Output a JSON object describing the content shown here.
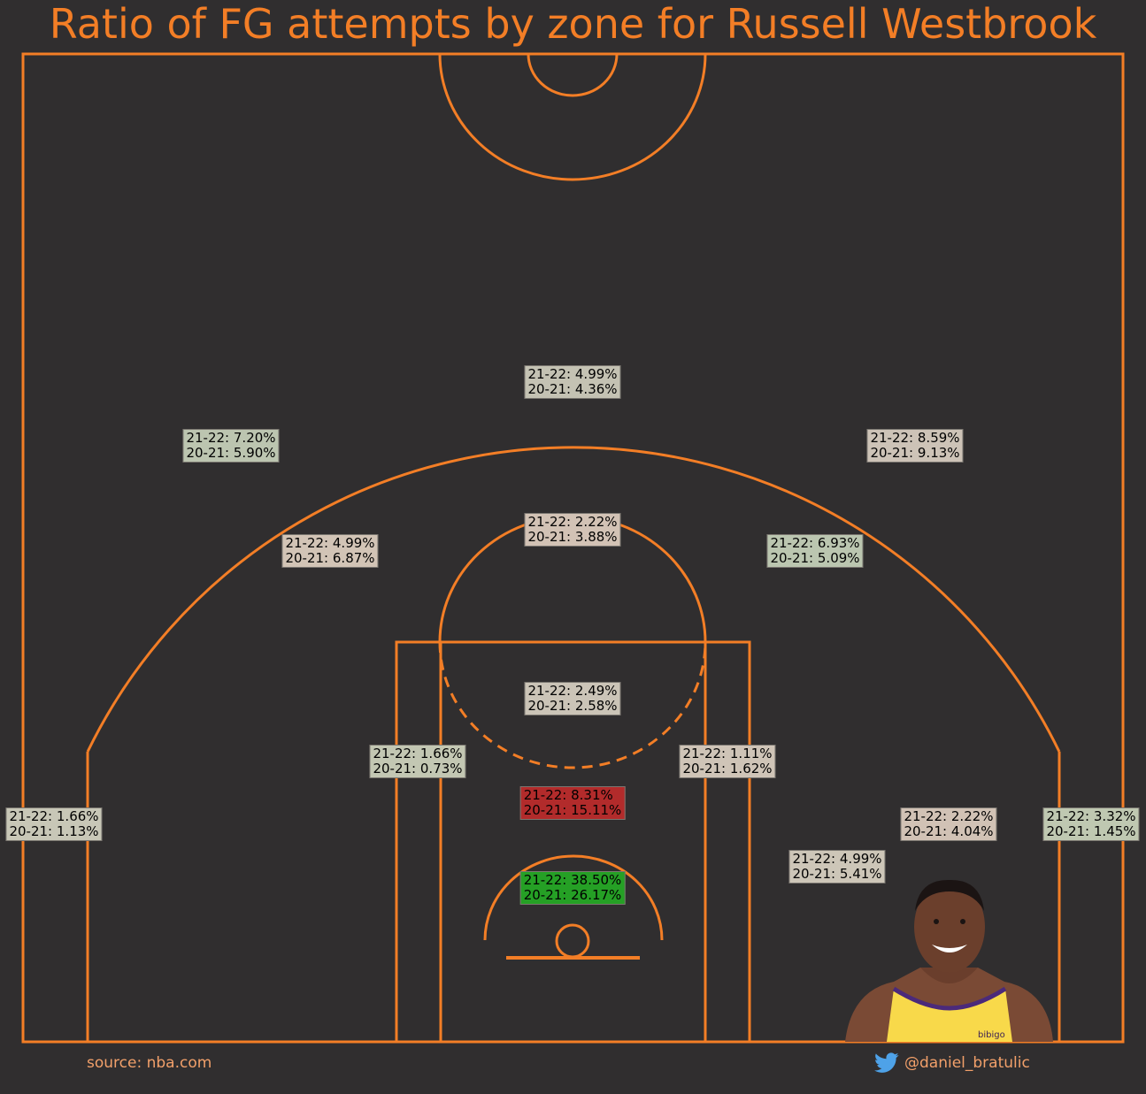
{
  "title": "Ratio of FG attempts by zone for Russell Westbrook",
  "footer": {
    "source": "source: nba.com",
    "twitter_handle": "@daniel_bratulic",
    "twitter_icon": "twitter-bird-icon"
  },
  "colors": {
    "background": "#302e2f",
    "court_lines": "#f37e26",
    "accent_text": "#f2a06a"
  },
  "player_image": "russell-westbrook-lakers-headshot",
  "chart_data": {
    "type": "table",
    "series": [
      {
        "name": "21-22"
      },
      {
        "name": "20-21"
      }
    ],
    "zones": [
      {
        "id": "above-break-center",
        "text_2122": "21-22: 4.99%",
        "text_2021": "20-21: 4.36%",
        "v2122": 4.99,
        "v2021": 4.36,
        "color": "#c4c2b3"
      },
      {
        "id": "above-break-left",
        "text_2122": "21-22: 7.20%",
        "text_2021": "20-21: 5.90%",
        "v2122": 7.2,
        "v2021": 5.9,
        "color": "#bcc5b0"
      },
      {
        "id": "above-break-right",
        "text_2122": "21-22: 8.59%",
        "text_2021": "20-21: 9.13%",
        "v2122": 8.59,
        "v2021": 9.13,
        "color": "#cdc3b7"
      },
      {
        "id": "mid-center",
        "text_2122": "21-22: 2.22%",
        "text_2021": "20-21: 3.88%",
        "v2122": 2.22,
        "v2021": 3.88,
        "color": "#d2c2b5"
      },
      {
        "id": "mid-left-center",
        "text_2122": "21-22: 4.99%",
        "text_2021": "20-21: 6.87%",
        "v2122": 4.99,
        "v2021": 6.87,
        "color": "#d2c4b6"
      },
      {
        "id": "mid-right-center",
        "text_2122": "21-22: 6.93%",
        "text_2021": "20-21: 5.09%",
        "v2122": 6.93,
        "v2021": 5.09,
        "color": "#bbc6b0"
      },
      {
        "id": "paint-non-ra",
        "text_2122": "21-22: 2.49%",
        "text_2021": "20-21: 2.58%",
        "v2122": 2.49,
        "v2021": 2.58,
        "color": "#cbc4b7"
      },
      {
        "id": "mid-left-baseline",
        "text_2122": "21-22: 1.66%",
        "text_2021": "20-21: 0.73%",
        "v2122": 1.66,
        "v2021": 0.73,
        "color": "#c3c7b3"
      },
      {
        "id": "mid-right-baseline",
        "text_2122": "21-22: 1.11%",
        "text_2021": "20-21: 1.62%",
        "v2122": 1.11,
        "v2021": 1.62,
        "color": "#cfc4b7"
      },
      {
        "id": "paint-lower",
        "text_2122": "21-22: 8.31%",
        "text_2021": "20-21: 15.11%",
        "v2122": 8.31,
        "v2021": 15.11,
        "color": "#b22b2b"
      },
      {
        "id": "restricted-area",
        "text_2122": "21-22: 38.50%",
        "text_2021": "20-21: 26.17%",
        "v2122": 38.5,
        "v2021": 26.17,
        "color": "#25a025"
      },
      {
        "id": "left-corner-3",
        "text_2122": "21-22: 1.66%",
        "text_2021": "20-21: 1.13%",
        "v2122": 1.66,
        "v2021": 1.13,
        "color": "#c8c7b7"
      },
      {
        "id": "right-corner-3",
        "text_2122": "21-22: 3.32%",
        "text_2021": "20-21: 1.45%",
        "v2122": 3.32,
        "v2021": 1.45,
        "color": "#bfc8b1"
      },
      {
        "id": "mid-right-short",
        "text_2122": "21-22: 2.22%",
        "text_2021": "20-21: 4.04%",
        "v2122": 2.22,
        "v2021": 4.04,
        "color": "#d1c2b5"
      },
      {
        "id": "mid-right-wing-low",
        "text_2122": "21-22: 4.99%",
        "text_2021": "20-21: 5.41%",
        "v2122": 4.99,
        "v2021": 5.41,
        "color": "#cdc6b8"
      }
    ]
  }
}
